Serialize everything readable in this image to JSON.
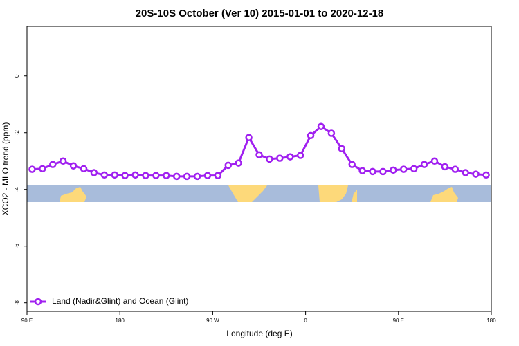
{
  "chart_data": {
    "type": "line",
    "title": "20S-10S October (Ver 10)   2015-01-01 to 2020-12-18",
    "x_label": "Longitude (deg E)",
    "y_label": "XCO2 - MLO trend (ppm)",
    "x": [
      95,
      105,
      115,
      125,
      135,
      145,
      155,
      165,
      175,
      185,
      195,
      205,
      215,
      225,
      235,
      245,
      255,
      265,
      275,
      285,
      295,
      305,
      315,
      325,
      335,
      345,
      355,
      365,
      375,
      385,
      395,
      405,
      415,
      425,
      435,
      445,
      455,
      465,
      475,
      485,
      495,
      505,
      515,
      525,
      535
    ],
    "series": [
      {
        "name": "Land (Nadir&Glint) and Ocean (Glint)",
        "color": "#a020f0",
        "values": [
          -3.29,
          -3.27,
          -3.12,
          -3.0,
          -3.17,
          -3.27,
          -3.41,
          -3.49,
          -3.49,
          -3.51,
          -3.49,
          -3.51,
          -3.51,
          -3.51,
          -3.54,
          -3.54,
          -3.54,
          -3.51,
          -3.51,
          -3.15,
          -3.07,
          -2.17,
          -2.78,
          -2.93,
          -2.9,
          -2.85,
          -2.8,
          -2.1,
          -1.78,
          -2.02,
          -2.56,
          -3.12,
          -3.34,
          -3.37,
          -3.37,
          -3.32,
          -3.29,
          -3.27,
          -3.12,
          -3.0,
          -3.2,
          -3.29,
          -3.41,
          -3.46,
          -3.49
        ]
      }
    ],
    "xlim": [
      90,
      540
    ],
    "xticks": [
      {
        "value": 90,
        "label": "90 E"
      },
      {
        "value": 180,
        "label": "180"
      },
      {
        "value": 270,
        "label": "90 W"
      },
      {
        "value": 360,
        "label": "0"
      },
      {
        "value": 450,
        "label": "90 E"
      },
      {
        "value": 540,
        "label": "180"
      }
    ],
    "ylim": [
      -8.3,
      1.75
    ],
    "yticks": [
      0,
      -2,
      -4,
      -6,
      -8
    ],
    "legend": "bottom-left"
  }
}
